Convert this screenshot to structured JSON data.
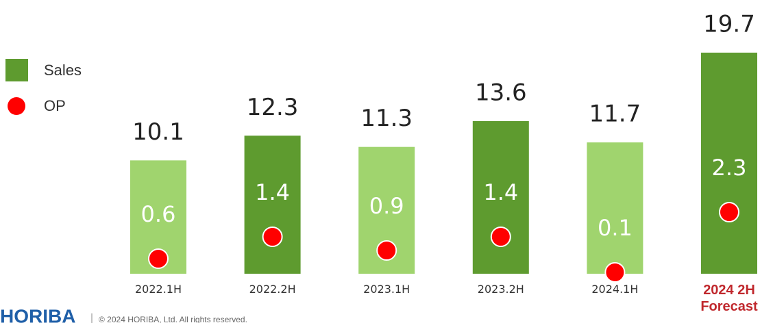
{
  "chart_data": {
    "type": "bar",
    "categories": [
      "2022.1H",
      "2022.2H",
      "2023.1H",
      "2023.2H",
      "2024.1H",
      "2024 2H Forecast"
    ],
    "highlight_category_color": "#c0282d",
    "series": [
      {
        "name": "Sales",
        "color": "#5e9b2f",
        "bar_colors": [
          "#a0d46e",
          "#5e9b2f",
          "#a0d46e",
          "#5e9b2f",
          "#a0d46e",
          "#5e9b2f"
        ],
        "values": [
          10.1,
          12.3,
          11.3,
          13.6,
          11.7,
          19.7
        ]
      },
      {
        "name": "OP",
        "color": "#ff0000",
        "values": [
          0.6,
          1.4,
          0.9,
          1.4,
          0.1,
          2.3
        ]
      }
    ],
    "footer": {
      "logo": "HORIBA",
      "copyright": "© 2024 HORIBA, Ltd. All rights reserved."
    }
  }
}
